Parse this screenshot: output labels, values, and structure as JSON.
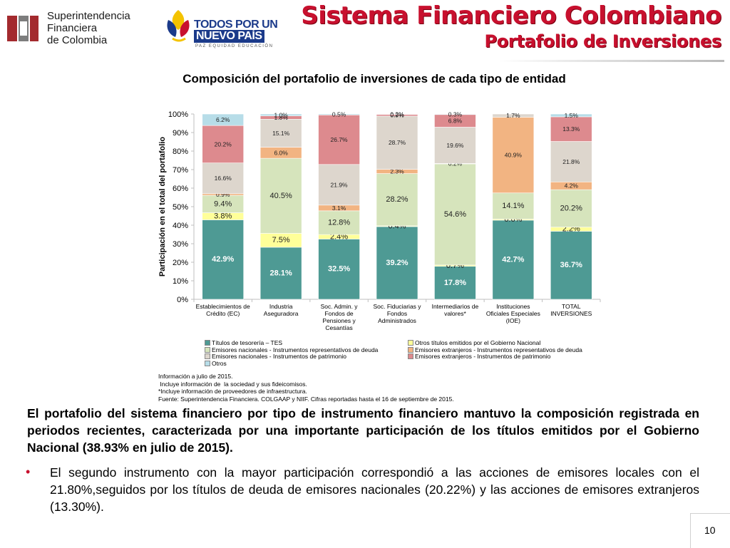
{
  "header": {
    "logo_left": {
      "name": "superfinanciera-logo",
      "lines": [
        "Superintendencia",
        "Financiera",
        "de Colombia"
      ]
    },
    "logo_center": {
      "name": "todos-por-un-nuevo-pais-logo",
      "line1": "TODOS POR UN",
      "line2": "NUEVO PAÍS",
      "line3": "PAZ  EQUIDAD  EDUCACIÓN"
    },
    "title": "Sistema Financiero Colombiano",
    "subtitle": "Portafolio de Inversiones",
    "title_color": "#c8102e"
  },
  "chart_data": {
    "type": "bar",
    "stacked": true,
    "title": "Composición del portafolio de inversiones de cada tipo de entidad",
    "ylabel": "Participación en el total del portafolio",
    "ylim": [
      0,
      100
    ],
    "yticks": [
      "0%",
      "10%",
      "20%",
      "30%",
      "40%",
      "50%",
      "60%",
      "70%",
      "80%",
      "90%",
      "100%"
    ],
    "categories": [
      [
        "Establecimientos de",
        "Crédito (EC)"
      ],
      [
        "Industria",
        "Aseguradora"
      ],
      [
        "Soc. Admin. y",
        "Fondos de",
        "Pensiones y",
        "Cesantías"
      ],
      [
        "Soc. Fiduciarias y",
        "Fondos",
        "Administrados"
      ],
      [
        "Intermediarios de",
        "valores*"
      ],
      [
        "Instituciones",
        "Oficiales Especiales",
        "(IOE)"
      ],
      [
        "TOTAL",
        "INVERSIONES"
      ]
    ],
    "series": [
      {
        "name": "Títulos de tesorería – TES",
        "color": "#4e9a94",
        "values": [
          42.9,
          28.1,
          32.5,
          39.2,
          17.8,
          42.7,
          36.7
        ],
        "labels": [
          "42.9%",
          "28.1%",
          "32.5%",
          "39.2%",
          "17.8%",
          "42.7%",
          "36.7%"
        ]
      },
      {
        "name": "Otros títulos emitidos por el Gobierno Nacional",
        "color": "#ffff99",
        "values": [
          3.8,
          7.5,
          2.4,
          0.4,
          0.7,
          0.6,
          2.2
        ],
        "labels": [
          "3.8%",
          "7.5%",
          "2.4%",
          "0.4%",
          "0.7%",
          "0.6%",
          "2.2%"
        ]
      },
      {
        "name": "Emisores nacionales - Instrumentos representativos de deuda",
        "color": "#d6e4bc",
        "values": [
          9.4,
          40.5,
          12.8,
          28.2,
          54.6,
          14.1,
          20.2
        ],
        "labels": [
          "9.4%",
          "40.5%",
          "12.8%",
          "28.2%",
          "54.6%",
          "14.1%",
          "20.2%"
        ]
      },
      {
        "name": "Emisores extranjeros - Instrumentos representativos de deuda",
        "color": "#f2b482",
        "values": [
          0.9,
          6.0,
          3.1,
          2.3,
          0.2,
          40.9,
          4.2
        ],
        "labels": [
          "0.9%",
          "6.0%",
          "3.1%",
          "2.3%",
          "0.2%",
          "40.9%",
          "4.2%"
        ]
      },
      {
        "name": "Emisores nacionales - Instrumentos de patrimonio",
        "color": "#ddd6cd",
        "values": [
          16.6,
          15.1,
          21.9,
          28.7,
          19.6,
          1.7,
          21.8
        ],
        "labels": [
          "16.6%",
          "15.1%",
          "21.9%",
          "28.7%",
          "19.6%",
          "1.7%",
          "21.8%"
        ]
      },
      {
        "name": "Emisores extranjeros - Instrumentos de patrimonio",
        "color": "#dd8a8e",
        "values": [
          20.2,
          1.8,
          26.7,
          0.9,
          6.8,
          0.0,
          13.3
        ],
        "labels": [
          "20.2%",
          "1.8%",
          "26.7%",
          "0.9%",
          "6.8%",
          "",
          "13.3%"
        ]
      },
      {
        "name": "Otros",
        "color": "#b7dde8",
        "values": [
          6.2,
          1.0,
          0.5,
          0.2,
          0.3,
          0.0,
          1.5
        ],
        "labels": [
          "6.2%",
          "1.0%",
          "0.5%",
          "0.2%",
          "0.3%",
          "",
          "1.5%"
        ]
      }
    ],
    "grid": false,
    "legend_position": "bottom"
  },
  "notes": [
    "Información a julio de 2015.",
    " Incluye información de  la sociedad y sus fideicomisos.",
    "*Incluye información de proveedores de infraestructura.",
    "Fuente: Superintendencia Financiera.  COLGAAP y NIIF. Cifras reportadas hasta el 16 de septiembre de 2015."
  ],
  "summary": "El portafolio del sistema financiero por tipo de instrumento financiero mantuvo la composición registrada en periodos recientes, caracterizada por una importante participación de los títulos emitidos por el Gobierno Nacional (38.93% en julio de 2015).",
  "bullet_marker": "•",
  "bullet": "El segundo instrumento con la mayor participación correspondió a las acciones de emisores locales con el 21.80%,seguidos por los títulos de deuda de emisores nacionales (20.22%) y las acciones de emisores extranjeros (13.30%).",
  "page_number": "10"
}
